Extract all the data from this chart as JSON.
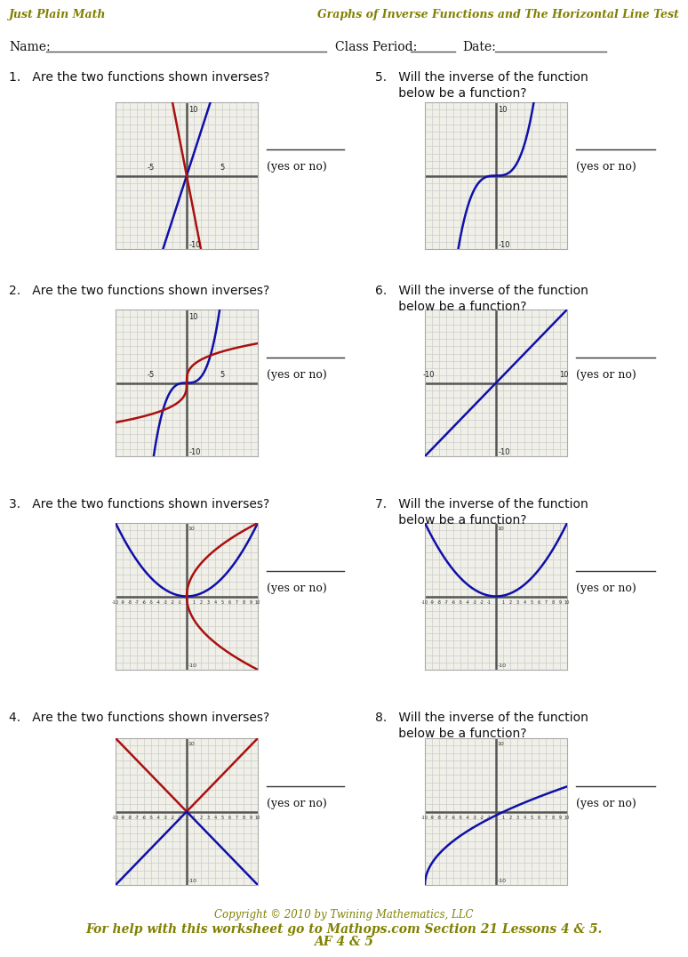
{
  "bg_color": "#f0f0e8",
  "page_bg": "#ffffff",
  "header_color": "#808000",
  "axis_color": "#555555",
  "grid_color": "#cccccc",
  "blue_color": "#1010aa",
  "red_color": "#aa1010",
  "title_left": "Just Plain Math",
  "title_right": "Graphs of Inverse Functions and The Horizontal Line Test",
  "footer1": "Copyright © 2010 by Twining Mathematics, LLC",
  "footer2": "For help with this worksheet go to Mathops.com Section 21 Lessons 4 & 5.",
  "footer3": "AF 4 & 5"
}
